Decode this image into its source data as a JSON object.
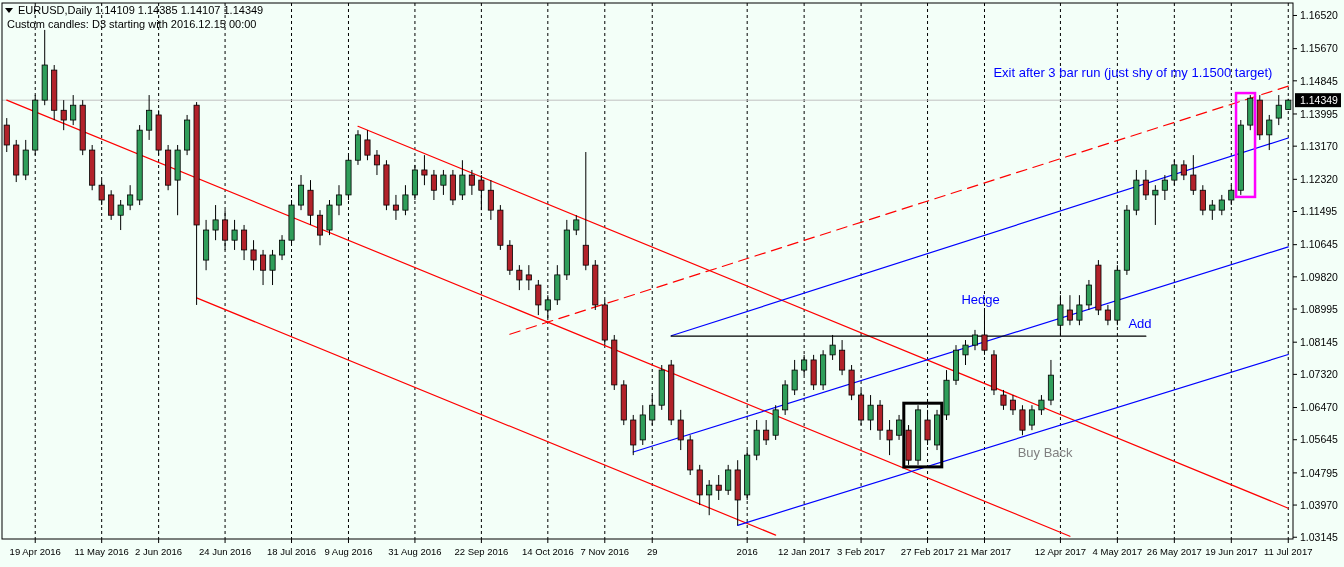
{
  "chart_data": {
    "type": "candlestick",
    "title": "EURUSD,Daily 1.14109 1.14385 1.14107 1.14349",
    "subtitle": "Custom candles: D3 starting with 2016.12.15 00:00",
    "categories": [
      null,
      null,
      null,
      "19 Apr 2016",
      null,
      null,
      null,
      null,
      null,
      null,
      "11 May 2016",
      null,
      null,
      null,
      null,
      null,
      "2 Jun 2016",
      null,
      null,
      null,
      null,
      null,
      null,
      "24 Jun 2016",
      null,
      null,
      null,
      null,
      null,
      null,
      "18 Jul 2016",
      null,
      null,
      null,
      null,
      null,
      "9 Aug 2016",
      null,
      null,
      null,
      null,
      null,
      null,
      "31 Aug 2016",
      null,
      null,
      null,
      null,
      null,
      null,
      "22 Sep 2016",
      null,
      null,
      null,
      null,
      null,
      null,
      "14 Oct 2016",
      null,
      null,
      null,
      null,
      null,
      "7 Nov 2016",
      null,
      null,
      null,
      null,
      "29",
      null,
      null,
      null,
      null,
      null,
      null,
      null,
      null,
      null,
      "2016",
      null,
      null,
      null,
      null,
      null,
      "12 Jan 2017",
      null,
      null,
      null,
      null,
      null,
      "3 Feb 2017",
      null,
      null,
      null,
      null,
      null,
      null,
      "27 Feb 2017",
      null,
      null,
      null,
      null,
      null,
      "21 Mar 2017",
      null,
      null,
      null,
      null,
      null,
      null,
      null,
      "12 Apr 2017",
      null,
      null,
      null,
      null,
      null,
      "4 May 2017",
      null,
      null,
      null,
      null,
      null,
      "26 May 2017",
      null,
      null,
      null,
      null,
      null,
      "19 Jun 2017",
      null,
      null,
      null,
      null,
      null,
      "11 Jul 2017"
    ],
    "ohlc": [
      [
        1.1371,
        1.1389,
        1.1302,
        1.132
      ],
      [
        1.132,
        1.1333,
        1.1225,
        1.1243
      ],
      [
        1.1243,
        1.1333,
        1.123,
        1.1307
      ],
      [
        1.1307,
        1.1448,
        1.1294,
        1.1435
      ],
      [
        1.1435,
        1.1615,
        1.1422,
        1.1525
      ],
      [
        1.1512,
        1.1525,
        1.1384,
        1.1409
      ],
      [
        1.1409,
        1.1435,
        1.1358,
        1.1384
      ],
      [
        1.1384,
        1.1448,
        1.1371,
        1.1422
      ],
      [
        1.1422,
        1.1435,
        1.1294,
        1.1307
      ],
      [
        1.1307,
        1.132,
        1.1204,
        1.1217
      ],
      [
        1.1217,
        1.123,
        1.1166,
        1.1179
      ],
      [
        1.1192,
        1.1204,
        1.1128,
        1.114
      ],
      [
        1.114,
        1.1179,
        1.1102,
        1.1166
      ],
      [
        1.1166,
        1.1217,
        1.1153,
        1.1192
      ],
      [
        1.1179,
        1.1371,
        1.1166,
        1.1358
      ],
      [
        1.1358,
        1.1448,
        1.1333,
        1.1409
      ],
      [
        1.1397,
        1.1409,
        1.1294,
        1.1307
      ],
      [
        1.1307,
        1.132,
        1.1204,
        1.1217
      ],
      [
        1.123,
        1.132,
        1.114,
        1.1307
      ],
      [
        1.1307,
        1.1397,
        1.1294,
        1.1384
      ],
      [
        1.1422,
        1.143,
        1.091,
        1.1115
      ],
      [
        1.1025,
        1.1128,
        1.0999,
        1.1102
      ],
      [
        1.1102,
        1.1166,
        1.1076,
        1.1128
      ],
      [
        1.1128,
        1.1153,
        1.1051,
        1.1076
      ],
      [
        1.1076,
        1.1128,
        1.1051,
        1.1102
      ],
      [
        1.1102,
        1.1115,
        1.1025,
        1.1051
      ],
      [
        1.1051,
        1.1076,
        1.0999,
        1.1025
      ],
      [
        1.1038,
        1.1051,
        1.0961,
        1.0999
      ],
      [
        1.0999,
        1.1051,
        1.0961,
        1.1038
      ],
      [
        1.1038,
        1.1089,
        1.1025,
        1.1076
      ],
      [
        1.1076,
        1.1179,
        1.1063,
        1.1166
      ],
      [
        1.1166,
        1.1243,
        1.1153,
        1.1217
      ],
      [
        1.1204,
        1.123,
        1.1115,
        1.114
      ],
      [
        1.114,
        1.1153,
        1.1063,
        1.1089
      ],
      [
        1.1102,
        1.1179,
        1.1089,
        1.1166
      ],
      [
        1.1166,
        1.1217,
        1.114,
        1.1192
      ],
      [
        1.1192,
        1.1294,
        1.1179,
        1.1281
      ],
      [
        1.1281,
        1.1358,
        1.1269,
        1.1346
      ],
      [
        1.1333,
        1.1358,
        1.1281,
        1.1294
      ],
      [
        1.1294,
        1.1307,
        1.1243,
        1.1269
      ],
      [
        1.1269,
        1.1281,
        1.1153,
        1.1166
      ],
      [
        1.1166,
        1.1192,
        1.1128,
        1.1153
      ],
      [
        1.1153,
        1.1217,
        1.114,
        1.1192
      ],
      [
        1.1192,
        1.1269,
        1.1179,
        1.1256
      ],
      [
        1.1256,
        1.1294,
        1.1217,
        1.1243
      ],
      [
        1.1243,
        1.1256,
        1.1179,
        1.1204
      ],
      [
        1.1217,
        1.1256,
        1.1192,
        1.1243
      ],
      [
        1.1243,
        1.1256,
        1.1166,
        1.1179
      ],
      [
        1.1192,
        1.1281,
        1.1179,
        1.1243
      ],
      [
        1.1243,
        1.1256,
        1.1192,
        1.1217
      ],
      [
        1.123,
        1.1243,
        1.1153,
        1.1204
      ],
      [
        1.1204,
        1.123,
        1.1128,
        1.1153
      ],
      [
        1.1153,
        1.1166,
        1.1051,
        1.1063
      ],
      [
        1.1063,
        1.1076,
        1.0987,
        1.0999
      ],
      [
        1.0999,
        1.1012,
        1.0948,
        1.0974
      ],
      [
        1.0987,
        1.1012,
        1.0948,
        1.0974
      ],
      [
        1.0961,
        1.0974,
        1.0884,
        1.091
      ],
      [
        1.0897,
        1.0935,
        1.0871,
        1.0923
      ],
      [
        1.0923,
        1.1012,
        1.091,
        1.0987
      ],
      [
        1.0987,
        1.1128,
        1.0974,
        1.1102
      ],
      [
        1.1102,
        1.114,
        1.1089,
        1.1128
      ],
      [
        1.1063,
        1.1302,
        1.0999,
        1.1012
      ],
      [
        1.1012,
        1.1025,
        1.0897,
        1.091
      ],
      [
        1.091,
        1.0923,
        1.0807,
        1.082
      ],
      [
        1.082,
        1.0833,
        1.0692,
        1.0705
      ],
      [
        1.0705,
        1.0717,
        1.0602,
        1.0615
      ],
      [
        1.0615,
        1.0628,
        1.0525,
        1.0551
      ],
      [
        1.0564,
        1.0653,
        1.0551,
        1.0628
      ],
      [
        1.0615,
        1.0679,
        1.0602,
        1.0653
      ],
      [
        1.0653,
        1.0756,
        1.0641,
        1.0743
      ],
      [
        1.0756,
        1.0769,
        1.0602,
        1.0615
      ],
      [
        1.0615,
        1.0641,
        1.0538,
        1.0564
      ],
      [
        1.0564,
        1.0576,
        1.0474,
        1.0487
      ],
      [
        1.0487,
        1.05,
        1.0397,
        1.0423
      ],
      [
        1.0423,
        1.0461,
        1.0371,
        1.0448
      ],
      [
        1.0448,
        1.0474,
        1.041,
        1.0435
      ],
      [
        1.0435,
        1.05,
        1.0423,
        1.0487
      ],
      [
        1.0487,
        1.0512,
        1.0345,
        1.041
      ],
      [
        1.0423,
        1.0538,
        1.041,
        1.0525
      ],
      [
        1.0525,
        1.0615,
        1.0512,
        1.0589
      ],
      [
        1.0589,
        1.0615,
        1.0551,
        1.0564
      ],
      [
        1.0576,
        1.0653,
        1.0564,
        1.0641
      ],
      [
        1.0641,
        1.0717,
        1.0628,
        1.0705
      ],
      [
        1.0692,
        1.0769,
        1.0679,
        1.0743
      ],
      [
        1.0743,
        1.0782,
        1.073,
        1.0769
      ],
      [
        1.0769,
        1.0782,
        1.0692,
        1.0705
      ],
      [
        1.0705,
        1.0794,
        1.0692,
        1.0782
      ],
      [
        1.0782,
        1.0833,
        1.0769,
        1.0807
      ],
      [
        1.0794,
        1.082,
        1.073,
        1.0743
      ],
      [
        1.0743,
        1.0756,
        1.0666,
        1.0679
      ],
      [
        1.0679,
        1.0692,
        1.0602,
        1.0615
      ],
      [
        1.0615,
        1.0679,
        1.0589,
        1.0653
      ],
      [
        1.0653,
        1.0666,
        1.0564,
        1.0589
      ],
      [
        1.0589,
        1.0615,
        1.0525,
        1.0564
      ],
      [
        1.0576,
        1.0628,
        1.0564,
        1.0615
      ],
      [
        1.0589,
        1.0602,
        1.05,
        1.0512
      ],
      [
        1.0512,
        1.0653,
        1.05,
        1.0641
      ],
      [
        1.0615,
        1.0641,
        1.0551,
        1.0564
      ],
      [
        1.0551,
        1.0641,
        1.0538,
        1.0628
      ],
      [
        1.0628,
        1.0743,
        1.0615,
        1.0717
      ],
      [
        1.0717,
        1.0807,
        1.0705,
        1.0794
      ],
      [
        1.0782,
        1.082,
        1.0756,
        1.0807
      ],
      [
        1.0807,
        1.0846,
        1.0794,
        1.0833
      ],
      [
        1.0833,
        1.0902,
        1.0782,
        1.0794
      ],
      [
        1.0782,
        1.0794,
        1.0679,
        1.0692
      ],
      [
        1.0679,
        1.0692,
        1.0641,
        1.0653
      ],
      [
        1.0666,
        1.0679,
        1.0628,
        1.0641
      ],
      [
        1.0641,
        1.0653,
        1.0576,
        1.0589
      ],
      [
        1.0602,
        1.0653,
        1.0589,
        1.0641
      ],
      [
        1.0641,
        1.0679,
        1.0628,
        1.0666
      ],
      [
        1.0666,
        1.0769,
        1.0653,
        1.073
      ],
      [
        1.0858,
        1.0935,
        1.0833,
        1.091
      ],
      [
        1.0897,
        1.0935,
        1.0858,
        1.0871
      ],
      [
        1.0871,
        1.0935,
        1.0858,
        1.091
      ],
      [
        1.091,
        1.0974,
        1.0897,
        1.0961
      ],
      [
        1.1012,
        1.1025,
        1.0884,
        1.0897
      ],
      [
        1.0897,
        1.091,
        1.0858,
        1.0871
      ],
      [
        1.0871,
        1.1012,
        1.0858,
        1.0999
      ],
      [
        1.0999,
        1.1166,
        1.0987,
        1.1153
      ],
      [
        1.1153,
        1.1256,
        1.114,
        1.123
      ],
      [
        1.123,
        1.1256,
        1.1179,
        1.1192
      ],
      [
        1.1192,
        1.1217,
        1.1115,
        1.1204
      ],
      [
        1.1204,
        1.1243,
        1.1179,
        1.123
      ],
      [
        1.123,
        1.1281,
        1.1217,
        1.1269
      ],
      [
        1.1269,
        1.1281,
        1.123,
        1.1243
      ],
      [
        1.1243,
        1.1294,
        1.1192,
        1.1204
      ],
      [
        1.1204,
        1.1217,
        1.114,
        1.1153
      ],
      [
        1.1153,
        1.1179,
        1.1128,
        1.1166
      ],
      [
        1.1153,
        1.1192,
        1.114,
        1.1179
      ],
      [
        1.1179,
        1.1217,
        1.1166,
        1.1204
      ],
      [
        1.1204,
        1.1384,
        1.1192,
        1.1371
      ],
      [
        1.1371,
        1.1448,
        1.1358,
        1.144
      ],
      [
        1.1435,
        1.1448,
        1.1333,
        1.1346
      ],
      [
        1.1346,
        1.1397,
        1.1307,
        1.1384
      ],
      [
        1.1389,
        1.1448,
        1.1371,
        1.1422
      ],
      [
        1.14109,
        1.14385,
        1.14107,
        1.14349
      ]
    ],
    "series": [
      {
        "type": "line",
        "color": "#ff0000",
        "values": [
          1.1435,
          null,
          null,
          null,
          null,
          null,
          null,
          null,
          null,
          null,
          null,
          null,
          null,
          null,
          null,
          null,
          null,
          null,
          null,
          null,
          null,
          null,
          null,
          null,
          null,
          null,
          null,
          null,
          null,
          null,
          null,
          null,
          null,
          null,
          null,
          null,
          null,
          null,
          null,
          null,
          null,
          null,
          null,
          null,
          null,
          null,
          null,
          null,
          null,
          null,
          null,
          null,
          null,
          null,
          null,
          null,
          null,
          null,
          null,
          null,
          null,
          null,
          null,
          null,
          null,
          null,
          null,
          null,
          null,
          null,
          null,
          null,
          null,
          null,
          null,
          null,
          null,
          null,
          null,
          null,
          null,
          null,
          null,
          null,
          null,
          null,
          null,
          null,
          null,
          null,
          null,
          null,
          null,
          null,
          null,
          null,
          null,
          null,
          null,
          null,
          null,
          null,
          null,
          null,
          null,
          null,
          null,
          null,
          null,
          null,
          null,
          null,
          1.0317,
          null,
          null,
          null,
          null,
          null,
          null,
          null,
          null,
          null,
          null,
          null,
          null,
          null,
          null,
          null,
          null,
          null,
          null,
          null,
          null,
          null,
          null,
          null
        ]
      },
      {
        "type": "line",
        "color": "#ff0000",
        "values": [
          null,
          null,
          null,
          null,
          null,
          null,
          null,
          null,
          null,
          null,
          null,
          null,
          null,
          null,
          null,
          null,
          null,
          null,
          null,
          null,
          null,
          null,
          null,
          null,
          null,
          null,
          null,
          null,
          null,
          null,
          null,
          null,
          null,
          null,
          null,
          null,
          null,
          1.1368,
          null,
          null,
          null,
          null,
          null,
          null,
          null,
          null,
          null,
          null,
          null,
          null,
          null,
          null,
          null,
          null,
          null,
          null,
          null,
          null,
          null,
          null,
          null,
          null,
          null,
          null,
          null,
          null,
          null,
          null,
          null,
          null,
          null,
          null,
          null,
          null,
          null,
          null,
          null,
          null,
          null,
          null,
          null,
          null,
          null,
          null,
          null,
          null,
          null,
          null,
          null,
          null,
          null,
          null,
          null,
          null,
          null,
          null,
          null,
          null,
          null,
          null,
          null,
          null,
          null,
          null,
          null,
          null,
          null,
          null,
          null,
          null,
          null,
          null,
          null,
          null,
          null,
          null,
          null,
          null,
          null,
          null,
          null,
          null,
          null,
          null,
          null,
          null,
          null,
          null,
          null,
          null,
          null,
          null,
          null,
          null,
          null,
          1.0389
        ]
      },
      {
        "type": "line",
        "color": "#ff0000",
        "values": [
          null,
          null,
          null,
          null,
          null,
          null,
          null,
          null,
          null,
          null,
          null,
          null,
          null,
          null,
          null,
          null,
          null,
          null,
          null,
          null,
          1.0928,
          null,
          null,
          null,
          null,
          null,
          null,
          null,
          null,
          null,
          null,
          null,
          null,
          null,
          null,
          null,
          null,
          null,
          null,
          null,
          null,
          null,
          null,
          null,
          null,
          null,
          null,
          null,
          null,
          null,
          null,
          null,
          null,
          null,
          null,
          null,
          null,
          null,
          null,
          null,
          null,
          null,
          null,
          null,
          null,
          null,
          null,
          null,
          null,
          null,
          null,
          null,
          null,
          null,
          null,
          null,
          null,
          null,
          null,
          null,
          null,
          1.032,
          null,
          null,
          null,
          null,
          null,
          null,
          null,
          null,
          null,
          null,
          null,
          null,
          null,
          null,
          null,
          null,
          null,
          null,
          null,
          null,
          null,
          null,
          null,
          null,
          null,
          null,
          null,
          null,
          null,
          null,
          null,
          null,
          null,
          null,
          null,
          null,
          null,
          null,
          null,
          null,
          null,
          null,
          null,
          null,
          null,
          null,
          null,
          null,
          null,
          null,
          null,
          null,
          null,
          null
        ]
      },
      {
        "type": "line",
        "color": "#ff0000",
        "line_style": "dashed",
        "values": [
          null,
          null,
          null,
          null,
          null,
          null,
          null,
          null,
          null,
          null,
          null,
          null,
          null,
          null,
          null,
          null,
          null,
          null,
          null,
          null,
          null,
          null,
          null,
          null,
          null,
          null,
          null,
          null,
          null,
          null,
          null,
          null,
          null,
          null,
          null,
          null,
          null,
          null,
          null,
          null,
          null,
          null,
          null,
          null,
          null,
          null,
          null,
          null,
          null,
          null,
          null,
          null,
          null,
          1.0835,
          null,
          null,
          null,
          null,
          null,
          null,
          null,
          null,
          null,
          null,
          null,
          null,
          null,
          null,
          null,
          null,
          null,
          null,
          null,
          null,
          null,
          null,
          null,
          null,
          null,
          null,
          null,
          null,
          null,
          null,
          null,
          null,
          null,
          null,
          null,
          null,
          null,
          null,
          null,
          null,
          null,
          null,
          null,
          null,
          null,
          null,
          null,
          null,
          null,
          null,
          null,
          null,
          null,
          null,
          null,
          null,
          null,
          null,
          null,
          null,
          null,
          null,
          null,
          null,
          null,
          null,
          null,
          null,
          null,
          null,
          null,
          null,
          null,
          null,
          null,
          null,
          null,
          null,
          null,
          null,
          null,
          1.1471
        ]
      },
      {
        "type": "line",
        "color": "#0000ff",
        "values": [
          null,
          null,
          null,
          null,
          null,
          null,
          null,
          null,
          null,
          null,
          null,
          null,
          null,
          null,
          null,
          null,
          null,
          null,
          null,
          null,
          null,
          null,
          null,
          null,
          null,
          null,
          null,
          null,
          null,
          null,
          null,
          null,
          null,
          null,
          null,
          null,
          null,
          null,
          null,
          null,
          null,
          null,
          null,
          null,
          null,
          null,
          null,
          null,
          null,
          null,
          null,
          null,
          null,
          null,
          null,
          null,
          null,
          null,
          null,
          null,
          null,
          null,
          null,
          null,
          null,
          null,
          null,
          null,
          null,
          null,
          1.0831,
          null,
          null,
          null,
          null,
          null,
          null,
          null,
          null,
          null,
          null,
          null,
          null,
          null,
          null,
          null,
          null,
          null,
          null,
          null,
          null,
          null,
          null,
          null,
          null,
          null,
          null,
          null,
          null,
          null,
          null,
          null,
          null,
          null,
          null,
          null,
          null,
          null,
          null,
          null,
          null,
          null,
          null,
          null,
          null,
          null,
          null,
          null,
          null,
          null,
          null,
          null,
          null,
          null,
          null,
          null,
          null,
          null,
          null,
          null,
          null,
          null,
          null,
          null,
          null,
          1.1338
        ]
      },
      {
        "type": "line",
        "color": "#0000ff",
        "values": [
          null,
          null,
          null,
          null,
          null,
          null,
          null,
          null,
          null,
          null,
          null,
          null,
          null,
          null,
          null,
          null,
          null,
          null,
          null,
          null,
          null,
          null,
          null,
          null,
          null,
          null,
          null,
          null,
          null,
          null,
          null,
          null,
          null,
          null,
          null,
          null,
          null,
          null,
          null,
          null,
          null,
          null,
          null,
          null,
          null,
          null,
          null,
          null,
          null,
          null,
          null,
          null,
          null,
          null,
          null,
          null,
          null,
          null,
          null,
          null,
          null,
          null,
          null,
          null,
          null,
          null,
          1.0533,
          null,
          null,
          null,
          null,
          null,
          null,
          null,
          null,
          null,
          null,
          null,
          null,
          null,
          null,
          null,
          null,
          null,
          null,
          null,
          null,
          null,
          null,
          null,
          null,
          null,
          null,
          null,
          null,
          null,
          null,
          null,
          null,
          null,
          null,
          null,
          null,
          null,
          null,
          null,
          null,
          null,
          null,
          null,
          null,
          null,
          null,
          null,
          null,
          null,
          null,
          null,
          null,
          null,
          null,
          null,
          null,
          null,
          null,
          null,
          null,
          null,
          null,
          null,
          null,
          null,
          null,
          null,
          null,
          1.1059
        ]
      },
      {
        "type": "line",
        "color": "#0000ff",
        "values": [
          null,
          null,
          null,
          null,
          null,
          null,
          null,
          null,
          null,
          null,
          null,
          null,
          null,
          null,
          null,
          null,
          null,
          null,
          null,
          null,
          null,
          null,
          null,
          null,
          null,
          null,
          null,
          null,
          null,
          null,
          null,
          null,
          null,
          null,
          null,
          null,
          null,
          null,
          null,
          null,
          null,
          null,
          null,
          null,
          null,
          null,
          null,
          null,
          null,
          null,
          null,
          null,
          null,
          null,
          null,
          null,
          null,
          null,
          null,
          null,
          null,
          null,
          null,
          null,
          null,
          null,
          null,
          null,
          null,
          null,
          null,
          null,
          null,
          null,
          null,
          null,
          null,
          1.0345,
          null,
          null,
          null,
          null,
          null,
          null,
          null,
          null,
          null,
          null,
          null,
          null,
          null,
          null,
          null,
          null,
          null,
          null,
          null,
          null,
          null,
          null,
          null,
          null,
          null,
          null,
          null,
          null,
          null,
          null,
          null,
          null,
          null,
          null,
          null,
          null,
          null,
          null,
          null,
          null,
          null,
          null,
          null,
          null,
          null,
          null,
          null,
          null,
          null,
          null,
          null,
          null,
          null,
          null,
          null,
          null,
          null,
          1.0783
        ]
      },
      {
        "type": "line",
        "color": "#000000",
        "values": [
          null,
          null,
          null,
          null,
          null,
          null,
          null,
          null,
          null,
          null,
          null,
          null,
          null,
          null,
          null,
          null,
          null,
          null,
          null,
          null,
          null,
          null,
          null,
          null,
          null,
          null,
          null,
          null,
          null,
          null,
          null,
          null,
          null,
          null,
          null,
          null,
          null,
          null,
          null,
          null,
          null,
          null,
          null,
          null,
          null,
          null,
          null,
          null,
          null,
          null,
          null,
          null,
          null,
          null,
          null,
          null,
          null,
          null,
          null,
          null,
          null,
          null,
          null,
          null,
          null,
          null,
          null,
          null,
          null,
          null,
          1.083,
          null,
          null,
          null,
          null,
          null,
          null,
          null,
          null,
          null,
          null,
          null,
          null,
          null,
          null,
          null,
          null,
          null,
          null,
          null,
          null,
          null,
          null,
          null,
          null,
          null,
          null,
          null,
          null,
          null,
          null,
          null,
          null,
          null,
          null,
          null,
          null,
          null,
          null,
          null,
          null,
          null,
          null,
          null,
          null,
          null,
          null,
          null,
          null,
          null,
          1.083,
          null,
          null,
          null,
          null,
          null,
          null,
          null,
          null,
          null,
          null,
          null,
          null,
          null,
          null,
          null
        ]
      }
    ],
    "ylim": [
      1.031,
      1.1684
    ],
    "yticks": [
      {
        "value": 1.1652,
        "label": "1.16520"
      },
      {
        "value": 1.1567,
        "label": "1.15670"
      },
      1.14845,
      1.13995,
      {
        "value": 1.1317,
        "label": "1.13170"
      },
      {
        "value": 1.1232,
        "label": "1.12320"
      },
      1.11495,
      1.10645,
      {
        "value": 1.0982,
        "label": "1.09820"
      },
      1.08995,
      1.08145,
      {
        "value": 1.0732,
        "label": "1.07320"
      },
      {
        "value": 1.0647,
        "label": "1.06470"
      },
      1.05645,
      1.04795,
      {
        "value": 1.0397,
        "label": "1.03970"
      },
      1.03145
    ],
    "ref_lines": [
      {
        "axis": "y",
        "value": 1.14349,
        "label": "1.14349",
        "color": "#c0c0c0"
      }
    ],
    "grid": "x",
    "annotations": [
      "Hedge",
      "Add",
      "Buy Back",
      "Exit after 3 bar run (just shy of my 1.1500 target)"
    ]
  }
}
